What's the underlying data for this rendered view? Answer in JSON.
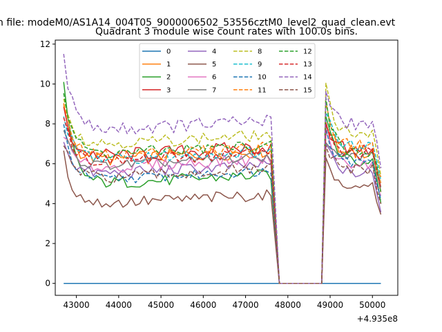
{
  "chart_data": {
    "type": "line",
    "suptitle": "n file: modeM0/AS1A14_004T05_9000006502_53556cztM0_level2_quad_clean.evt",
    "title": "Quadrant 3 module wise count rates with 100.0s bins.",
    "xlabel": "",
    "ylabel": "",
    "x_offset_label": "+4.935e8",
    "xlim": [
      42500,
      50600
    ],
    "ylim": [
      -0.6,
      12.2
    ],
    "x_ticks": [
      43000,
      44000,
      45000,
      46000,
      47000,
      48000,
      49000,
      50000
    ],
    "y_ticks": [
      0,
      2,
      4,
      6,
      8,
      10,
      12
    ],
    "x_tick_labels": [
      "43000",
      "44000",
      "45000",
      "46000",
      "47000",
      "48000",
      "49000",
      "50000"
    ],
    "y_tick_labels": [
      "0",
      "2",
      "4",
      "6",
      "8",
      "10",
      "12"
    ],
    "grid": false,
    "legend_position": "upper-center",
    "legend_columns": 4,
    "segments": {
      "seg1": {
        "start": 42700,
        "end": 47600,
        "step": 100
      },
      "gap": {
        "start": 47800,
        "end": 48800,
        "value": 0
      },
      "seg2": {
        "start": 48900,
        "end": 50200,
        "step": 100
      }
    },
    "series": [
      {
        "name": "0",
        "color": "#1f77b4",
        "dash": "solid",
        "base1": 0.0,
        "base2": 0.0,
        "start_spike": 0.0,
        "spike2": 0.0,
        "noise": 0.0
      },
      {
        "name": "1",
        "color": "#ff7f0e",
        "dash": "solid",
        "base1": 6.1,
        "base2": 6.6,
        "start_spike": 8.8,
        "spike2": 8.2,
        "noise": 0.35
      },
      {
        "name": "2",
        "color": "#2ca02c",
        "dash": "solid",
        "base1": 4.9,
        "base2": 6.1,
        "start_spike": 9.9,
        "spike2": 8.6,
        "noise": 0.3
      },
      {
        "name": "3",
        "color": "#d62728",
        "dash": "solid",
        "base1": 6.3,
        "base2": 6.7,
        "start_spike": 8.6,
        "spike2": 7.8,
        "noise": 0.35
      },
      {
        "name": "4",
        "color": "#9467bd",
        "dash": "solid",
        "base1": 5.4,
        "base2": 5.6,
        "start_spike": 7.2,
        "spike2": 7.2,
        "noise": 0.3
      },
      {
        "name": "5",
        "color": "#8c564b",
        "dash": "solid",
        "base1": 3.9,
        "base2": 5.0,
        "start_spike": 6.4,
        "spike2": 6.1,
        "noise": 0.3
      },
      {
        "name": "6",
        "color": "#e377c2",
        "dash": "solid",
        "base1": 5.7,
        "base2": 6.0,
        "start_spike": 7.6,
        "spike2": 7.4,
        "noise": 0.3
      },
      {
        "name": "7",
        "color": "#7f7f7f",
        "dash": "solid",
        "base1": 5.8,
        "base2": 6.4,
        "start_spike": 7.6,
        "spike2": 7.0,
        "noise": 0.25
      },
      {
        "name": "8",
        "color": "#bcbd22",
        "dash": "dashed",
        "base1": 6.9,
        "base2": 7.4,
        "start_spike": 9.5,
        "spike2": 10.1,
        "noise": 0.3
      },
      {
        "name": "9",
        "color": "#17becf",
        "dash": "dashed",
        "base1": 6.1,
        "base2": 6.9,
        "start_spike": 8.6,
        "spike2": 8.8,
        "noise": 0.3
      },
      {
        "name": "10",
        "color": "#1f77b4",
        "dash": "dashed",
        "base1": 5.1,
        "base2": 6.0,
        "start_spike": 7.8,
        "spike2": 7.6,
        "noise": 0.25
      },
      {
        "name": "11",
        "color": "#ff7f0e",
        "dash": "dashed",
        "base1": 6.3,
        "base2": 6.9,
        "start_spike": 8.9,
        "spike2": 8.9,
        "noise": 0.3
      },
      {
        "name": "12",
        "color": "#2ca02c",
        "dash": "dashed",
        "base1": 6.4,
        "base2": 6.6,
        "start_spike": 9.6,
        "spike2": 9.1,
        "noise": 0.3
      },
      {
        "name": "13",
        "color": "#d62728",
        "dash": "dashed",
        "base1": 6.0,
        "base2": 6.5,
        "start_spike": 8.4,
        "spike2": 7.9,
        "noise": 0.3
      },
      {
        "name": "14",
        "color": "#9467bd",
        "dash": "dashed",
        "base1": 7.6,
        "base2": 7.9,
        "start_spike": 11.5,
        "spike2": 9.9,
        "noise": 0.35
      },
      {
        "name": "15",
        "color": "#8c564b",
        "dash": "dashed",
        "base1": 5.2,
        "base2": 5.7,
        "start_spike": 7.0,
        "spike2": 7.0,
        "noise": 0.3
      }
    ]
  }
}
